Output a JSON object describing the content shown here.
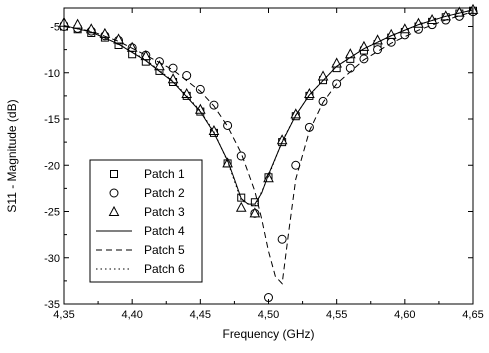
{
  "chart_data": {
    "type": "line",
    "title": "",
    "xlabel": "Frequency (GHz)",
    "ylabel": "S11 - Magnitude (dB)",
    "xlim": [
      4.35,
      4.65
    ],
    "ylim": [
      -35,
      -3
    ],
    "xticks": [
      4.35,
      4.4,
      4.45,
      4.5,
      4.55,
      4.6,
      4.65
    ],
    "xtick_labels": [
      "4,35",
      "4,40",
      "4,45",
      "4,50",
      "4,55",
      "4,60",
      "4,65"
    ],
    "yticks": [
      -35,
      -30,
      -25,
      -20,
      -15,
      -10,
      -5
    ],
    "ytick_labels": [
      "-35",
      "-30",
      "-25",
      "-20",
      "-15",
      "-10",
      "-5"
    ],
    "grid": false,
    "legend_position": "bottom-left",
    "series": [
      {
        "name": "Patch 1",
        "style": "marker",
        "marker": "square",
        "x": [
          4.35,
          4.36,
          4.37,
          4.38,
          4.39,
          4.4,
          4.41,
          4.42,
          4.43,
          4.44,
          4.45,
          4.46,
          4.47,
          4.48,
          4.49,
          4.5,
          4.51,
          4.52,
          4.53,
          4.54,
          4.55,
          4.56,
          4.57,
          4.58,
          4.59,
          4.6,
          4.61,
          4.62,
          4.63,
          4.64,
          4.65
        ],
        "y": [
          -5.0,
          -5.3,
          -5.7,
          -6.2,
          -7.0,
          -8.0,
          -8.8,
          -9.8,
          -11.0,
          -12.5,
          -14.2,
          -16.5,
          -19.8,
          -23.5,
          -24.0,
          -21.3,
          -17.5,
          -14.7,
          -12.5,
          -10.8,
          -9.5,
          -8.5,
          -7.6,
          -6.9,
          -6.2,
          -5.6,
          -5.0,
          -4.5,
          -4.0,
          -3.6,
          -3.3
        ]
      },
      {
        "name": "Patch 2",
        "style": "marker",
        "marker": "circle",
        "x": [
          4.35,
          4.36,
          4.37,
          4.38,
          4.39,
          4.4,
          4.41,
          4.42,
          4.43,
          4.44,
          4.45,
          4.46,
          4.47,
          4.48,
          4.49,
          4.5,
          4.51,
          4.52,
          4.53,
          4.54,
          4.55,
          4.56,
          4.57,
          4.58,
          4.59,
          4.6,
          4.61,
          4.62,
          4.63,
          4.64,
          4.65
        ],
        "y": [
          -5.0,
          -5.2,
          -5.5,
          -6.0,
          -6.5,
          -7.3,
          -8.1,
          -8.8,
          -9.5,
          -10.3,
          -11.8,
          -13.5,
          -15.7,
          -19.0,
          -25.2,
          -34.3,
          -28.0,
          -20.0,
          -15.9,
          -13.1,
          -11.2,
          -9.5,
          -8.5,
          -7.5,
          -6.7,
          -5.9,
          -5.3,
          -4.8,
          -4.3,
          -3.9,
          -3.4
        ]
      },
      {
        "name": "Patch 3",
        "style": "marker",
        "marker": "triangle",
        "x": [
          4.35,
          4.36,
          4.37,
          4.38,
          4.39,
          4.4,
          4.41,
          4.42,
          4.43,
          4.44,
          4.45,
          4.46,
          4.47,
          4.48,
          4.49,
          4.5,
          4.51,
          4.52,
          4.53,
          4.54,
          4.55,
          4.56,
          4.57,
          4.58,
          4.59,
          4.6,
          4.61,
          4.62,
          4.63,
          4.64,
          4.65
        ],
        "y": [
          -4.6,
          -4.8,
          -5.3,
          -5.8,
          -6.4,
          -7.3,
          -8.2,
          -9.3,
          -10.7,
          -12.3,
          -14.0,
          -16.3,
          -19.8,
          -24.6,
          -25.2,
          -21.4,
          -17.3,
          -14.5,
          -12.3,
          -10.4,
          -9.0,
          -8.0,
          -7.2,
          -6.5,
          -5.9,
          -5.3,
          -4.7,
          -4.3,
          -3.9,
          -3.5,
          -3.2
        ]
      },
      {
        "name": "Patch 4",
        "style": "solid",
        "x": [
          4.35,
          4.37,
          4.39,
          4.41,
          4.43,
          4.45,
          4.46,
          4.47,
          4.475,
          4.48,
          4.485,
          4.49,
          4.495,
          4.5,
          4.51,
          4.52,
          4.53,
          4.55,
          4.57,
          4.59,
          4.61,
          4.63,
          4.65
        ],
        "y": [
          -4.9,
          -5.6,
          -6.9,
          -8.7,
          -11.0,
          -14.2,
          -16.5,
          -19.5,
          -21.5,
          -23.6,
          -24.2,
          -24.2,
          -23.0,
          -21.0,
          -17.5,
          -14.6,
          -12.4,
          -9.3,
          -7.4,
          -6.0,
          -4.8,
          -3.9,
          -3.2
        ]
      },
      {
        "name": "Patch 5",
        "style": "dashed",
        "x": [
          4.35,
          4.37,
          4.39,
          4.41,
          4.43,
          4.45,
          4.46,
          4.47,
          4.48,
          4.49,
          4.495,
          4.5,
          4.505,
          4.51,
          4.515,
          4.52,
          4.53,
          4.54,
          4.55,
          4.57,
          4.59,
          4.61,
          4.63,
          4.65
        ],
        "y": [
          -5.0,
          -5.5,
          -6.6,
          -8.1,
          -9.7,
          -12.0,
          -13.6,
          -15.8,
          -18.7,
          -22.8,
          -25.8,
          -29.3,
          -32.0,
          -32.8,
          -27.0,
          -21.5,
          -16.3,
          -13.2,
          -11.2,
          -8.6,
          -6.8,
          -5.4,
          -4.3,
          -3.4
        ]
      },
      {
        "name": "Patch 6",
        "style": "dotted",
        "x": [
          4.35,
          4.37,
          4.39,
          4.41,
          4.43,
          4.45,
          4.46,
          4.47,
          4.48,
          4.49,
          4.5,
          4.51,
          4.52,
          4.53,
          4.55,
          4.57,
          4.59,
          4.61,
          4.63,
          4.65
        ],
        "y": [
          -4.9,
          -5.6,
          -6.9,
          -8.6,
          -10.9,
          -14.1,
          -16.4,
          -19.6,
          -23.8,
          -24.5,
          -21.2,
          -17.4,
          -14.6,
          -12.4,
          -9.3,
          -7.4,
          -6.0,
          -4.8,
          -3.9,
          -3.2
        ]
      }
    ]
  }
}
